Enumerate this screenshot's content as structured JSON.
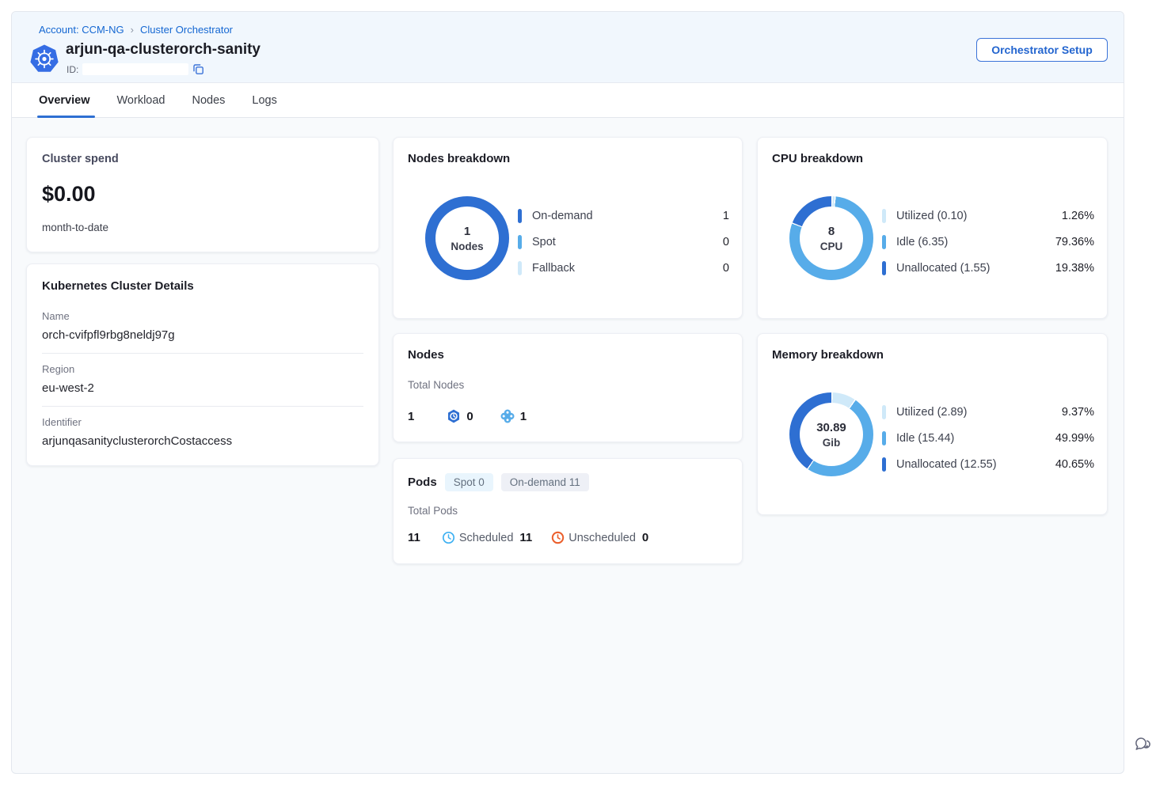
{
  "breadcrumb": {
    "separator": "›",
    "items": [
      {
        "label": "Account: CCM-NG"
      },
      {
        "label": "Cluster Orchestrator"
      }
    ]
  },
  "header": {
    "title": "arjun-qa-clusterorch-sanity",
    "id_label": "ID:",
    "id_value": "",
    "setup_button_label": "Orchestrator Setup"
  },
  "tabs": [
    {
      "label": "Overview",
      "active": true
    },
    {
      "label": "Workload",
      "active": false
    },
    {
      "label": "Nodes",
      "active": false
    },
    {
      "label": "Logs",
      "active": false
    }
  ],
  "cards": {
    "cluster_spend": {
      "title": "Cluster spend",
      "amount": "$0.00",
      "period": "month-to-date"
    },
    "cluster_details": {
      "title": "Kubernetes Cluster Details",
      "fields": [
        {
          "label": "Name",
          "value": "orch-cvifpfl9rbg8neldj97g"
        },
        {
          "label": "Region",
          "value": "eu-west-2"
        },
        {
          "label": "Identifier",
          "value": "arjunqasanityclusterorchCostaccess"
        }
      ]
    },
    "nodes": {
      "title": "Nodes",
      "total_label": "Total Nodes",
      "total_value": "1",
      "spot_value": "0",
      "on_demand_value": "1"
    },
    "pods": {
      "title": "Pods",
      "spot_badge": "Spot 0",
      "on_demand_badge": "On-demand 11",
      "total_label": "Total Pods",
      "total_value": "11",
      "scheduled_label": "Scheduled",
      "scheduled_value": "11",
      "unscheduled_label": "Unscheduled",
      "unscheduled_value": "0"
    }
  },
  "colors": {
    "accent_blue": "#2365cf",
    "dark_blue": "#2e6fd2",
    "mid_blue": "#57ace9",
    "light_blue": "#cfe9f9",
    "scheduled_blue": "#3fb1f2",
    "unscheduled_orange": "#eb5f2c"
  },
  "chart_data": [
    {
      "type": "pie",
      "title": "Nodes breakdown",
      "center_value": "1",
      "center_label": "Nodes",
      "legend_position": "right",
      "series": [
        {
          "name": "On-demand",
          "value": 1,
          "display": "1",
          "color": "#2e6fd2"
        },
        {
          "name": "Spot",
          "value": 0,
          "display": "0",
          "color": "#57ace9"
        },
        {
          "name": "Fallback",
          "value": 0,
          "display": "0",
          "color": "#cfe9f9"
        }
      ]
    },
    {
      "type": "pie",
      "title": "CPU breakdown",
      "center_value": "8",
      "center_label": "CPU",
      "legend_position": "right",
      "series": [
        {
          "name": "Utilized (0.10)",
          "value": 1.26,
          "display": "1.26%",
          "color": "#cfe9f9"
        },
        {
          "name": "Idle (6.35)",
          "value": 79.36,
          "display": "79.36%",
          "color": "#57ace9"
        },
        {
          "name": "Unallocated (1.55)",
          "value": 19.38,
          "display": "19.38%",
          "color": "#2e6fd2"
        }
      ]
    },
    {
      "type": "pie",
      "title": "Memory breakdown",
      "center_value": "30.89",
      "center_label": "Gib",
      "legend_position": "right",
      "series": [
        {
          "name": "Utilized (2.89)",
          "value": 9.37,
          "display": "9.37%",
          "color": "#cfe9f9"
        },
        {
          "name": "Idle (15.44)",
          "value": 49.99,
          "display": "49.99%",
          "color": "#57ace9"
        },
        {
          "name": "Unallocated (12.55)",
          "value": 40.65,
          "display": "40.65%",
          "color": "#2e6fd2"
        }
      ]
    }
  ]
}
